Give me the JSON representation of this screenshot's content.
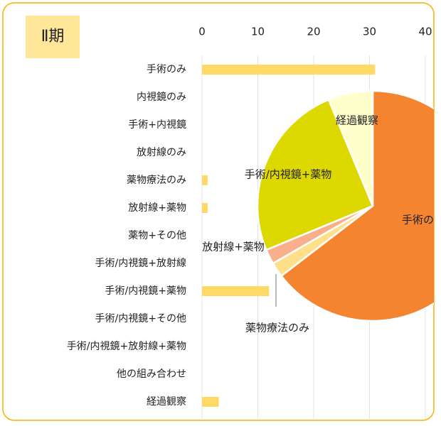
{
  "chart_data": [
    {
      "type": "bar",
      "title": "Ⅱ期",
      "categories": [
        "手術のみ",
        "内視鏡のみ",
        "手術+内視鏡",
        "放射線のみ",
        "薬物療法のみ",
        "放射線+薬物",
        "薬物+その他",
        "手術/内視鏡+放射線",
        "手術/内視鏡+薬物",
        "手術/内視鏡+その他",
        "手術/内視鏡+放射線+薬物",
        "他の組み合わせ",
        "経過観察"
      ],
      "values": [
        31,
        0,
        0,
        0,
        1,
        1,
        0,
        0,
        12,
        0,
        0,
        0,
        3
      ],
      "color": "#FFD966",
      "xlim": [
        0,
        40
      ],
      "xticks": [
        0,
        10,
        20,
        30,
        40
      ],
      "grid": true
    },
    {
      "type": "pie",
      "categories": [
        "手術のみ",
        "薬物療法のみ",
        "放射線+薬物",
        "手術/内視鏡+薬物",
        "経過観察"
      ],
      "values": [
        31,
        1,
        1,
        12,
        3
      ],
      "colors": [
        "#F58431",
        "#FFE08A",
        "#F9B08A",
        "#DDD800",
        "#FFFFCC"
      ]
    }
  ]
}
